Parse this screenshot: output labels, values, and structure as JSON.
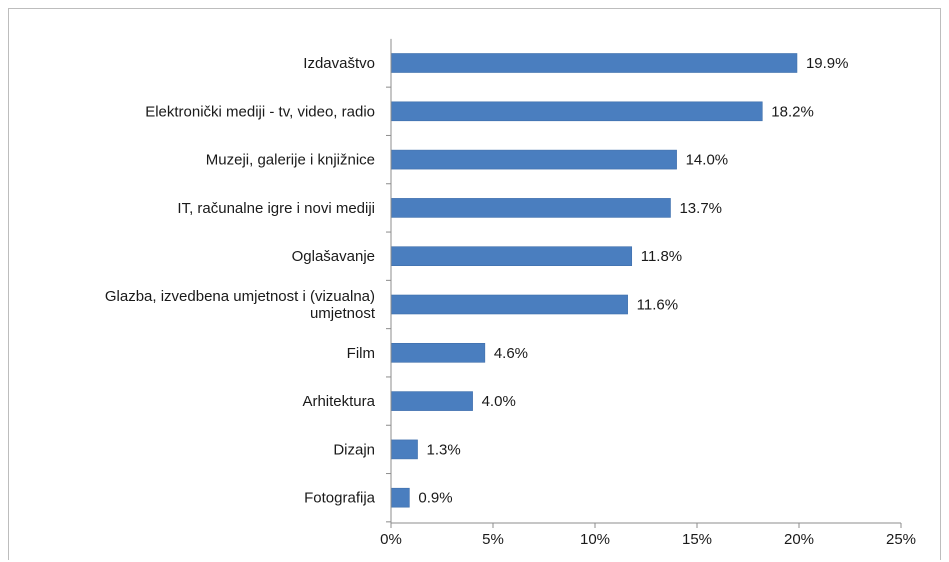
{
  "chart_data": {
    "type": "bar",
    "orientation": "horizontal",
    "categories": [
      [
        "Izdavaštvo"
      ],
      [
        "Elektronički mediji - tv, video, radio"
      ],
      [
        "Muzeji, galerije i knjižnice"
      ],
      [
        "IT, računalne igre i novi mediji"
      ],
      [
        "Oglašavanje"
      ],
      [
        "Glazba, izvedbena umjetnost i (vizualna)",
        "umjetnost"
      ],
      [
        "Film"
      ],
      [
        "Arhitektura"
      ],
      [
        "Dizajn"
      ],
      [
        "Fotografija"
      ]
    ],
    "values": [
      19.9,
      18.2,
      14.0,
      13.7,
      11.8,
      11.6,
      4.6,
      4.0,
      1.3,
      0.9
    ],
    "value_labels": [
      "19.9%",
      "18.2%",
      "14.0%",
      "13.7%",
      "11.8%",
      "11.6%",
      "4.6%",
      "4.0%",
      "1.3%",
      "0.9%"
    ],
    "xlim": [
      0,
      25
    ],
    "xticks": [
      0,
      5,
      10,
      15,
      20,
      25
    ],
    "xtick_labels": [
      "0%",
      "5%",
      "10%",
      "15%",
      "20%",
      "25%"
    ],
    "grid": false,
    "legend": "none",
    "bar_color": "#4a7ebf"
  }
}
